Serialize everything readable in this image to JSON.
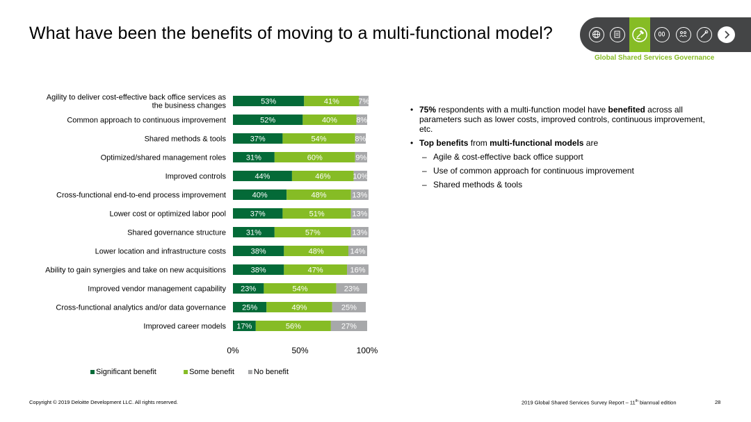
{
  "header": {
    "title": "What have been the benefits of moving to a multi-functional model?",
    "section": "Global Shared Services Governance",
    "nav_icons": [
      "globe-icon",
      "clipboard-icon",
      "gavel-icon",
      "footprints-icon",
      "people-icon",
      "tools-icon",
      "telescope-icon"
    ],
    "active_index": 2
  },
  "chart_data": {
    "type": "bar",
    "orientation": "horizontal",
    "stacked": true,
    "categories": [
      [
        "Agility to deliver cost-effective back office services as",
        "the business changes"
      ],
      [
        "Common approach to continuous improvement"
      ],
      [
        "Shared methods & tools"
      ],
      [
        "Optimized/shared management roles"
      ],
      [
        "Improved controls"
      ],
      [
        "Cross-functional end-to-end process improvement"
      ],
      [
        "Lower cost or optimized labor pool"
      ],
      [
        "Shared governance structure"
      ],
      [
        "Lower location and infrastructure costs"
      ],
      [
        "Ability to gain synergies and take on new acquisitions"
      ],
      [
        "Improved vendor management capability"
      ],
      [
        "Cross-functional analytics and/or data governance"
      ],
      [
        "Improved career models"
      ]
    ],
    "series": [
      {
        "name": "Significant benefit",
        "color": "#046a38",
        "values": [
          53,
          52,
          37,
          31,
          44,
          40,
          37,
          31,
          38,
          38,
          23,
          25,
          17
        ],
        "labels": [
          "53%",
          "52%",
          "37%",
          "31%",
          "44%",
          "40%",
          "37%",
          "31%",
          "38%",
          "38%",
          "23%",
          "25%",
          "17%"
        ]
      },
      {
        "name": "Some benefit",
        "color": "#86bc25",
        "values": [
          41,
          40,
          54,
          60,
          46,
          48,
          51,
          57,
          48,
          47,
          54,
          49,
          56
        ],
        "labels": [
          "41%",
          "40%",
          "54%",
          "60%",
          "46%",
          "48%",
          "51%",
          "57%",
          "48%",
          "47%",
          "54%",
          "49%",
          "56%"
        ]
      },
      {
        "name": "No benefit",
        "color": "#a7a8aa",
        "values": [
          7,
          8,
          8,
          9,
          10,
          13,
          13,
          13,
          14,
          16,
          23,
          25,
          27
        ],
        "labels": [
          "7%",
          "8%",
          "8%",
          "9%",
          "10%",
          "13%",
          "13%",
          "13%",
          "14%",
          "16%",
          "23%",
          "25%",
          "27%"
        ]
      }
    ],
    "xlim": [
      0,
      100
    ],
    "xticks": [
      0,
      50,
      100
    ],
    "xtick_labels": [
      "0%",
      "50%",
      "100%"
    ],
    "legend_position": "bottom"
  },
  "bullets": [
    {
      "parts": [
        {
          "t": "75%",
          "b": true
        },
        {
          "t": " respondents with a multi-function model have ",
          "b": false
        },
        {
          "t": "benefited",
          "b": true
        },
        {
          "t": " across all parameters such as lower costs, improved controls, continuous improvement, etc.",
          "b": false
        }
      ]
    },
    {
      "parts": [
        {
          "t": "Top benefits",
          "b": true
        },
        {
          "t": " from ",
          "b": false
        },
        {
          "t": "multi-functional models",
          "b": true
        },
        {
          "t": " are",
          "b": false
        }
      ]
    }
  ],
  "sub_bullets": [
    "Agile & cost-effective back office support",
    "Use of common approach for continuous improvement",
    "Shared methods & tools"
  ],
  "footer": {
    "copyright": "Copyright © 2019 Deloitte Development LLC. All rights reserved.",
    "report_prefix": "2019 Global Shared Services Survey Report – 11",
    "report_sup": "th",
    "report_suffix": " biannual edition",
    "page": "28"
  }
}
